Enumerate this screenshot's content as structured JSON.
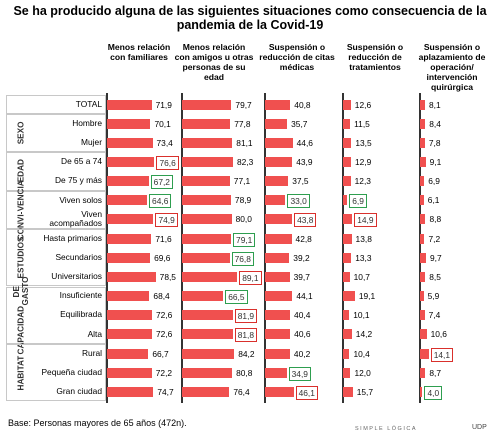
{
  "chart_data": {
    "type": "bar",
    "title": "Se ha producido alguna de las siguientes situaciones como consecuencia de la pandemia de la Covid-19",
    "bar_color": "#f0504f",
    "groups": [
      {
        "categories": [
          "TOTAL"
        ]
      },
      {
        "label": [
          "SEXO"
        ],
        "categories": [
          "Hombre",
          "Mujer"
        ]
      },
      {
        "label": [
          "EDAD"
        ],
        "categories": [
          "De 65 a 74",
          "De 75 y más"
        ]
      },
      {
        "label": [
          "CONVI-",
          "VENCIA"
        ],
        "categories": [
          "Viven solos",
          "Viven acompañados"
        ]
      },
      {
        "label": [
          "ESTUDIOS"
        ],
        "categories": [
          "Hasta primarios",
          "Secundarios",
          "Universitarios"
        ]
      },
      {
        "label": [
          "CAPACIDAD",
          "DE GASTO"
        ],
        "categories": [
          "Insuficiente",
          "Equilibrada",
          "Alta"
        ]
      },
      {
        "label": [
          "HABITAT"
        ],
        "categories": [
          "Rural",
          "Pequeña ciudad",
          "Gran ciudad"
        ]
      }
    ],
    "series": [
      {
        "name": "Menos relación con familiares",
        "values": [
          71.9,
          70.1,
          73.4,
          76.6,
          67.2,
          64.6,
          74.9,
          71.6,
          69.6,
          78.5,
          68.4,
          72.6,
          72.6,
          66.7,
          72.2,
          74.7
        ],
        "value_labels": [
          "71,9",
          "70,1",
          "73,4",
          "76,6",
          "67,2",
          "64,6",
          "74,9",
          "71,6",
          "69,6",
          "78,5",
          "68,4",
          "72,6",
          "72,6",
          "66,7",
          "72,2",
          "74,7"
        ],
        "box_colors": [
          null,
          null,
          null,
          "#d9302c",
          "#2e9e4f",
          "#2e9e4f",
          "#d9302c",
          null,
          null,
          null,
          null,
          null,
          null,
          null,
          null,
          null
        ]
      },
      {
        "name": "Menos relación con amigos u otras personas de su edad",
        "values": [
          79.7,
          77.8,
          81.1,
          82.3,
          77.1,
          78.9,
          80.0,
          79.1,
          76.8,
          89.1,
          66.5,
          81.9,
          81.8,
          84.2,
          80.8,
          76.4
        ],
        "value_labels": [
          "79,7",
          "77,8",
          "81,1",
          "82,3",
          "77,1",
          "78,9",
          "80,0",
          "79,1",
          "76,8",
          "89,1",
          "66,5",
          "81,9",
          "81,8",
          "84,2",
          "80,8",
          "76,4"
        ],
        "box_colors": [
          null,
          null,
          null,
          null,
          null,
          null,
          null,
          "#2e9e4f",
          "#2e9e4f",
          "#d9302c",
          "#2e9e4f",
          "#d9302c",
          "#d9302c",
          null,
          null,
          null
        ]
      },
      {
        "name": "Suspensión o reducción de citas médicas",
        "values": [
          40.8,
          35.7,
          44.6,
          43.9,
          37.5,
          33.0,
          43.8,
          42.8,
          39.2,
          39.7,
          44.1,
          40.4,
          40.6,
          40.2,
          34.9,
          46.1
        ],
        "value_labels": [
          "40,8",
          "35,7",
          "44,6",
          "43,9",
          "37,5",
          "33,0",
          "43,8",
          "42,8",
          "39,2",
          "39,7",
          "44,1",
          "40,4",
          "40,6",
          "40,2",
          "34,9",
          "46,1"
        ],
        "box_colors": [
          null,
          null,
          null,
          null,
          null,
          "#2e9e4f",
          "#d9302c",
          null,
          null,
          null,
          null,
          null,
          null,
          null,
          "#2e9e4f",
          "#d9302c"
        ]
      },
      {
        "name": "Suspensión o reducción de tratamientos",
        "values": [
          12.6,
          11.5,
          13.5,
          12.9,
          12.3,
          6.9,
          14.9,
          13.8,
          13.3,
          10.7,
          19.1,
          10.1,
          14.2,
          10.4,
          12.0,
          15.7
        ],
        "value_labels": [
          "12,6",
          "11,5",
          "13,5",
          "12,9",
          "12,3",
          "6,9",
          "14,9",
          "13,8",
          "13,3",
          "10,7",
          "19,1",
          "10,1",
          "14,2",
          "10,4",
          "12,0",
          "15,7"
        ],
        "box_colors": [
          null,
          null,
          null,
          null,
          null,
          "#2e9e4f",
          "#d9302c",
          null,
          null,
          null,
          null,
          null,
          null,
          null,
          null,
          null
        ]
      },
      {
        "name": "Suspensión o aplazamiento de operación/ intervención quirúrgica",
        "values": [
          8.1,
          8.4,
          7.8,
          9.1,
          6.9,
          6.1,
          8.8,
          7.2,
          9.7,
          8.5,
          5.9,
          7.4,
          10.6,
          14.1,
          8.7,
          4.0
        ],
        "value_labels": [
          "8,1",
          "8,4",
          "7,8",
          "9,1",
          "6,9",
          "6,1",
          "8,8",
          "7,2",
          "9,7",
          "8,5",
          "5,9",
          "7,4",
          "10,6",
          "14,1",
          "8,7",
          "4,0"
        ],
        "box_colors": [
          null,
          null,
          null,
          null,
          null,
          null,
          null,
          null,
          null,
          null,
          null,
          null,
          null,
          "#d9302c",
          null,
          "#2e9e4f"
        ]
      }
    ],
    "footnote": "Base: Personas mayores de 65 años (472n).",
    "logo": {
      "name": "SIMPLE LÓGICA",
      "partner": "UDP"
    }
  }
}
